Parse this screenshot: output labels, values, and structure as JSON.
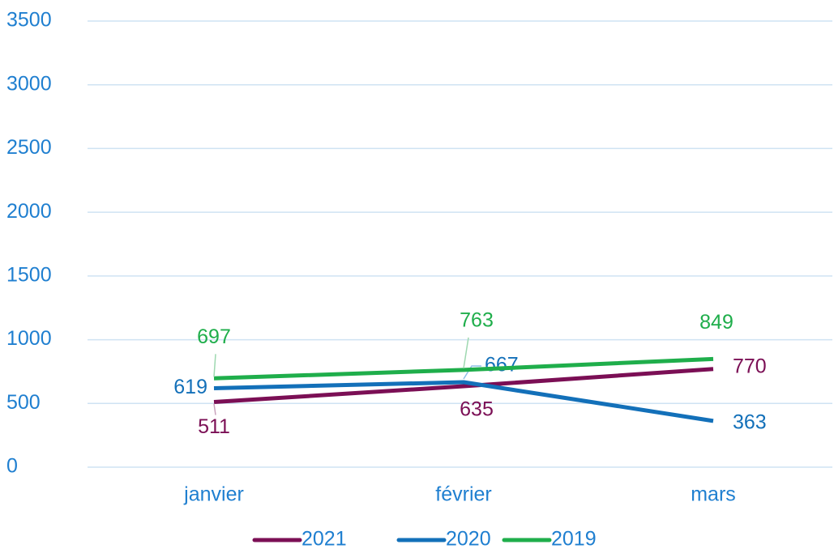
{
  "chart_data": {
    "type": "line",
    "categories": [
      "janvier",
      "février",
      "mars"
    ],
    "series": [
      {
        "name": "2021",
        "color": "#7b0f55",
        "values": [
          511,
          635,
          770
        ]
      },
      {
        "name": "2020",
        "color": "#1370b9",
        "values": [
          619,
          667,
          363
        ]
      },
      {
        "name": "2019",
        "color": "#1fae4b",
        "values": [
          697,
          763,
          849
        ]
      }
    ],
    "ylim": [
      0,
      3500
    ],
    "yticks": [
      0,
      500,
      1000,
      1500,
      2000,
      2500,
      3000,
      3500
    ],
    "grid": true,
    "legend": "bottom"
  }
}
